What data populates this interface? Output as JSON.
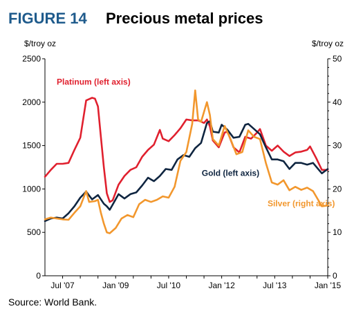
{
  "figure": {
    "number": "FIGURE 14",
    "title": "Precious metal prices",
    "source": "Source: World Bank."
  },
  "chart_data": {
    "type": "line",
    "left_axis_unit": "$/troy oz",
    "right_axis_unit": "$/troy oz",
    "left_ylim": [
      0,
      2500
    ],
    "right_ylim": [
      0,
      50
    ],
    "left_ticks": [
      "0",
      "500",
      "1000",
      "1500",
      "2000",
      "2500"
    ],
    "right_ticks": [
      "0",
      "10",
      "20",
      "30",
      "40",
      "50"
    ],
    "x_ticks": [
      "Jul '07",
      "Jan '09",
      "Jul '10",
      "Jan '12",
      "Jul '13",
      "Jan '15"
    ],
    "x_domain": [
      "2007-01",
      "2015-01"
    ],
    "grid": false,
    "series": [
      {
        "name": "Platinum (left axis)",
        "axis": "left",
        "color": "#e0202e",
        "points": [
          [
            "2007-01",
            1140
          ],
          [
            "2007-03",
            1220
          ],
          [
            "2007-05",
            1290
          ],
          [
            "2007-07",
            1290
          ],
          [
            "2007-09",
            1300
          ],
          [
            "2007-11",
            1450
          ],
          [
            "2008-01",
            1590
          ],
          [
            "2008-03",
            2020
          ],
          [
            "2008-05",
            2050
          ],
          [
            "2008-06",
            2040
          ],
          [
            "2008-07",
            1950
          ],
          [
            "2008-08",
            1600
          ],
          [
            "2008-09",
            1250
          ],
          [
            "2008-10",
            950
          ],
          [
            "2008-11",
            850
          ],
          [
            "2008-12",
            870
          ],
          [
            "2009-02",
            1050
          ],
          [
            "2009-04",
            1150
          ],
          [
            "2009-06",
            1220
          ],
          [
            "2009-08",
            1250
          ],
          [
            "2009-10",
            1370
          ],
          [
            "2009-12",
            1450
          ],
          [
            "2010-02",
            1510
          ],
          [
            "2010-04",
            1680
          ],
          [
            "2010-05",
            1580
          ],
          [
            "2010-07",
            1550
          ],
          [
            "2010-09",
            1620
          ],
          [
            "2010-11",
            1700
          ],
          [
            "2011-01",
            1800
          ],
          [
            "2011-03",
            1790
          ],
          [
            "2011-05",
            1790
          ],
          [
            "2011-07",
            1760
          ],
          [
            "2011-08",
            1800
          ],
          [
            "2011-09",
            1720
          ],
          [
            "2011-10",
            1560
          ],
          [
            "2011-12",
            1480
          ],
          [
            "2012-02",
            1650
          ],
          [
            "2012-03",
            1660
          ],
          [
            "2012-05",
            1480
          ],
          [
            "2012-07",
            1420
          ],
          [
            "2012-09",
            1600
          ],
          [
            "2012-11",
            1580
          ],
          [
            "2013-01",
            1650
          ],
          [
            "2013-02",
            1690
          ],
          [
            "2013-04",
            1500
          ],
          [
            "2013-06",
            1440
          ],
          [
            "2013-08",
            1500
          ],
          [
            "2013-10",
            1430
          ],
          [
            "2013-12",
            1380
          ],
          [
            "2014-02",
            1420
          ],
          [
            "2014-04",
            1430
          ],
          [
            "2014-06",
            1450
          ],
          [
            "2014-07",
            1490
          ],
          [
            "2014-09",
            1360
          ],
          [
            "2014-11",
            1220
          ],
          [
            "2015-01",
            1220
          ]
        ]
      },
      {
        "name": "Gold (left axis)",
        "axis": "left",
        "color": "#0f2540",
        "points": [
          [
            "2007-01",
            630
          ],
          [
            "2007-03",
            660
          ],
          [
            "2007-05",
            670
          ],
          [
            "2007-07",
            660
          ],
          [
            "2007-09",
            720
          ],
          [
            "2007-11",
            800
          ],
          [
            "2008-01",
            900
          ],
          [
            "2008-03",
            970
          ],
          [
            "2008-05",
            880
          ],
          [
            "2008-07",
            930
          ],
          [
            "2008-09",
            830
          ],
          [
            "2008-10",
            800
          ],
          [
            "2008-11",
            760
          ],
          [
            "2008-12",
            820
          ],
          [
            "2009-02",
            940
          ],
          [
            "2009-04",
            890
          ],
          [
            "2009-06",
            940
          ],
          [
            "2009-08",
            960
          ],
          [
            "2009-10",
            1040
          ],
          [
            "2009-12",
            1130
          ],
          [
            "2010-02",
            1090
          ],
          [
            "2010-04",
            1150
          ],
          [
            "2010-06",
            1230
          ],
          [
            "2010-08",
            1220
          ],
          [
            "2010-10",
            1340
          ],
          [
            "2010-12",
            1390
          ],
          [
            "2011-02",
            1370
          ],
          [
            "2011-04",
            1470
          ],
          [
            "2011-06",
            1530
          ],
          [
            "2011-08",
            1760
          ],
          [
            "2011-09",
            1780
          ],
          [
            "2011-10",
            1660
          ],
          [
            "2011-12",
            1650
          ],
          [
            "2012-01",
            1740
          ],
          [
            "2012-03",
            1680
          ],
          [
            "2012-05",
            1590
          ],
          [
            "2012-07",
            1600
          ],
          [
            "2012-09",
            1740
          ],
          [
            "2012-10",
            1750
          ],
          [
            "2012-12",
            1690
          ],
          [
            "2013-02",
            1630
          ],
          [
            "2013-04",
            1480
          ],
          [
            "2013-06",
            1340
          ],
          [
            "2013-08",
            1340
          ],
          [
            "2013-10",
            1320
          ],
          [
            "2013-12",
            1230
          ],
          [
            "2014-02",
            1300
          ],
          [
            "2014-04",
            1300
          ],
          [
            "2014-06",
            1280
          ],
          [
            "2014-08",
            1300
          ],
          [
            "2014-10",
            1220
          ],
          [
            "2014-11",
            1180
          ],
          [
            "2015-01",
            1230
          ]
        ]
      },
      {
        "name": "Silver (right axis)",
        "axis": "right",
        "color": "#f2972d",
        "points": [
          [
            "2007-01",
            13
          ],
          [
            "2007-03",
            13.4
          ],
          [
            "2007-05",
            13.2
          ],
          [
            "2007-07",
            13
          ],
          [
            "2007-09",
            12.9
          ],
          [
            "2007-11",
            14.5
          ],
          [
            "2008-01",
            16
          ],
          [
            "2008-03",
            19.5
          ],
          [
            "2008-04",
            17
          ],
          [
            "2008-06",
            17.2
          ],
          [
            "2008-07",
            17.5
          ],
          [
            "2008-08",
            14.5
          ],
          [
            "2008-09",
            12
          ],
          [
            "2008-10",
            10
          ],
          [
            "2008-11",
            9.8
          ],
          [
            "2009-01",
            11
          ],
          [
            "2009-03",
            13.2
          ],
          [
            "2009-05",
            14
          ],
          [
            "2009-07",
            13.5
          ],
          [
            "2009-09",
            16.5
          ],
          [
            "2009-11",
            17.5
          ],
          [
            "2010-01",
            17
          ],
          [
            "2010-03",
            17.5
          ],
          [
            "2010-05",
            18.3
          ],
          [
            "2010-07",
            18
          ],
          [
            "2010-09",
            20.5
          ],
          [
            "2010-11",
            26.5
          ],
          [
            "2011-01",
            28.5
          ],
          [
            "2011-03",
            35
          ],
          [
            "2011-04",
            42.7
          ],
          [
            "2011-05",
            36
          ],
          [
            "2011-06",
            35.5
          ],
          [
            "2011-08",
            40
          ],
          [
            "2011-09",
            37
          ],
          [
            "2011-10",
            31.5
          ],
          [
            "2011-12",
            30
          ],
          [
            "2012-02",
            34.5
          ],
          [
            "2012-04",
            31.5
          ],
          [
            "2012-06",
            28
          ],
          [
            "2012-08",
            28.5
          ],
          [
            "2012-10",
            33.5
          ],
          [
            "2012-12",
            32
          ],
          [
            "2013-02",
            31.5
          ],
          [
            "2013-04",
            26
          ],
          [
            "2013-06",
            21.5
          ],
          [
            "2013-08",
            21
          ],
          [
            "2013-10",
            22
          ],
          [
            "2013-12",
            19.7
          ],
          [
            "2014-02",
            20.5
          ],
          [
            "2014-04",
            19.8
          ],
          [
            "2014-06",
            20.3
          ],
          [
            "2014-08",
            19.5
          ],
          [
            "2014-10",
            17.2
          ],
          [
            "2014-11",
            16
          ],
          [
            "2015-01",
            16.2
          ]
        ]
      }
    ],
    "series_labels": [
      {
        "text": "Platinum (left axis)",
        "color": "#e0202e",
        "date": "2007-05",
        "value": 2200,
        "anchor": "start"
      },
      {
        "text": "Gold (left axis)",
        "color": "#0f2540",
        "date": "2012-04",
        "value": 1150,
        "anchor": "middle"
      },
      {
        "text": "Silver (right axis)",
        "color": "#f2972d",
        "date": "2014-04",
        "value": 800,
        "anchor": "middle"
      }
    ]
  }
}
